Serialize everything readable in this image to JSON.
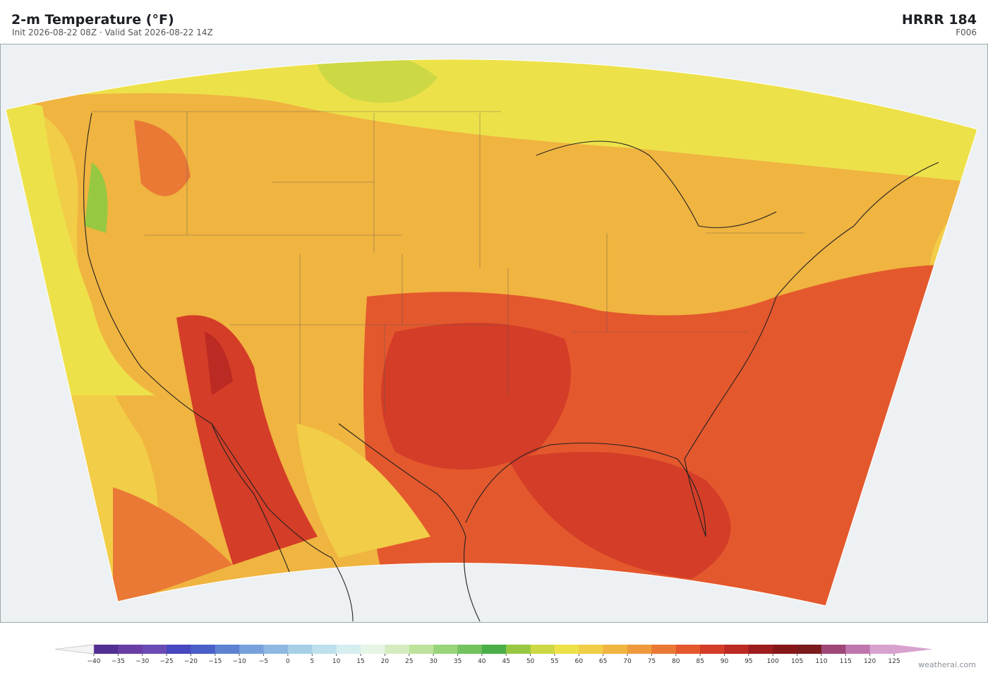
{
  "header": {
    "title": "2-m Temperature  (°F)",
    "subtitle": "Init 2026-08-22 08Z  ·  Valid Sat 2026-08-22 14Z",
    "model": "HRRR  184",
    "forecast_hour": "F006"
  },
  "colorbar": {
    "ticks": [
      {
        "value": -40,
        "label": "−40"
      },
      {
        "value": -35,
        "label": "−35"
      },
      {
        "value": -30,
        "label": "−30"
      },
      {
        "value": -25,
        "label": "−25"
      },
      {
        "value": -20,
        "label": "−20"
      },
      {
        "value": -15,
        "label": "−15"
      },
      {
        "value": -10,
        "label": "−10"
      },
      {
        "value": -5,
        "label": "−5"
      },
      0,
      5,
      10,
      15,
      20,
      25,
      30,
      35,
      40,
      45,
      50,
      55,
      60,
      65,
      70,
      75,
      80,
      85,
      90,
      95,
      100,
      105,
      110,
      115,
      120,
      125
    ],
    "colors": [
      "#512f93",
      "#6a3ea5",
      "#6a4bb5",
      "#4747bf",
      "#4a60c8",
      "#5d82d2",
      "#78a1dc",
      "#8fb8e0",
      "#a6cfe6",
      "#bde0ec",
      "#d6eef0",
      "#e6f5e6",
      "#d4ecc0",
      "#bde29c",
      "#98d47a",
      "#72c25e",
      "#4aaf48",
      "#97c841",
      "#cdd845",
      "#ede14a",
      "#f2cd47",
      "#f0b440",
      "#ee9a3c",
      "#ea7935",
      "#e4582d",
      "#d43d27",
      "#bb2a23",
      "#9d1d1f",
      "#861719",
      "#7a1a1c",
      "#9f4878",
      "#bf76ad",
      "#d8a2cf"
    ],
    "extend_colors": [
      "#f4f4f6",
      "#d8a2cf"
    ]
  },
  "credit": "weatherai.com"
}
